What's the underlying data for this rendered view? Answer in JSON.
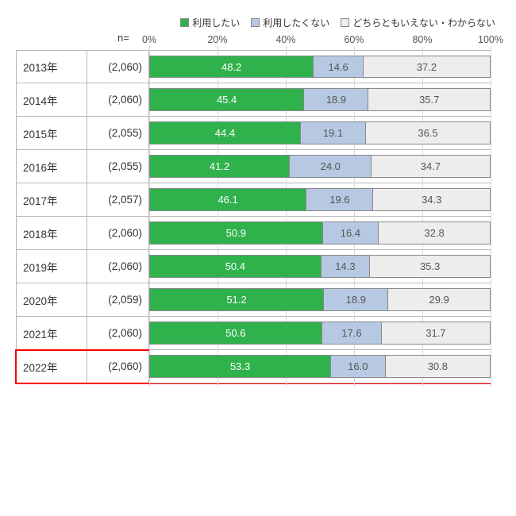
{
  "legend": {
    "items": [
      {
        "label": "利用したい",
        "color": "#2fb24c"
      },
      {
        "label": "利用したくない",
        "color": "#b7c9e2"
      },
      {
        "label": "どちらともいえない・わからない",
        "color": "#ededed"
      }
    ]
  },
  "axis": {
    "ticks": [
      "0%",
      "20%",
      "40%",
      "60%",
      "80%",
      "100%"
    ],
    "positions": [
      0,
      20,
      40,
      60,
      80,
      100
    ]
  },
  "n_label": "n=",
  "colors": {
    "seg1": "#2fb24c",
    "seg2": "#b7c9e2",
    "seg3": "#ededed",
    "seg1_text": "#ffffff",
    "seg2_text": "#555555",
    "seg3_text": "#555555",
    "highlight_border": "#ff0000",
    "grid": "#d9d9d9"
  },
  "rows": [
    {
      "year": "2013年",
      "n": "(2,060)",
      "values": [
        48.2,
        14.6,
        37.2
      ],
      "highlight": false
    },
    {
      "year": "2014年",
      "n": "(2,060)",
      "values": [
        45.4,
        18.9,
        35.7
      ],
      "highlight": false
    },
    {
      "year": "2015年",
      "n": "(2,055)",
      "values": [
        44.4,
        19.1,
        36.5
      ],
      "highlight": false
    },
    {
      "year": "2016年",
      "n": "(2,055)",
      "values": [
        41.2,
        24.0,
        34.7
      ],
      "highlight": false
    },
    {
      "year": "2017年",
      "n": "(2,057)",
      "values": [
        46.1,
        19.6,
        34.3
      ],
      "highlight": false
    },
    {
      "year": "2018年",
      "n": "(2,060)",
      "values": [
        50.9,
        16.4,
        32.8
      ],
      "highlight": false
    },
    {
      "year": "2019年",
      "n": "(2,060)",
      "values": [
        50.4,
        14.3,
        35.3
      ],
      "highlight": false
    },
    {
      "year": "2020年",
      "n": "(2,059)",
      "values": [
        51.2,
        18.9,
        29.9
      ],
      "highlight": false
    },
    {
      "year": "2021年",
      "n": "(2,060)",
      "values": [
        50.6,
        17.6,
        31.7
      ],
      "highlight": false
    },
    {
      "year": "2022年",
      "n": "(2,060)",
      "values": [
        53.3,
        16.0,
        30.8
      ],
      "highlight": true
    }
  ]
}
